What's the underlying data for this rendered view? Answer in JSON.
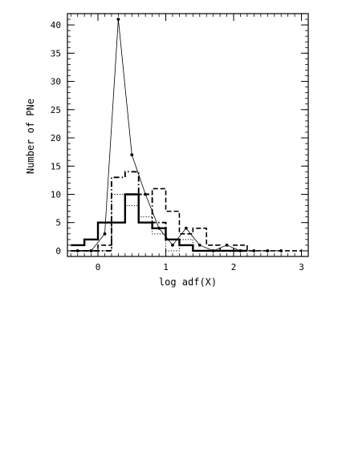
{
  "chart_data": {
    "type": "line",
    "xlabel": "log adf(X)",
    "ylabel": "Number of PNe",
    "xlim": [
      -0.45,
      3.1
    ],
    "ylim": [
      -1,
      42
    ],
    "x_ticks": [
      0,
      1,
      2,
      3
    ],
    "x_tick_labels": [
      "0",
      "1",
      "2",
      "3"
    ],
    "y_ticks": [
      0,
      5,
      10,
      15,
      20,
      25,
      30,
      35,
      40
    ],
    "y_tick_labels": [
      "0",
      "5",
      "10",
      "15",
      "20",
      "25",
      "30",
      "35",
      "40"
    ],
    "grid": false,
    "legend": "none",
    "series": [
      {
        "style": "solid line with dot markers",
        "x": [
          -0.3,
          -0.1,
          0.1,
          0.3,
          0.5,
          0.7,
          0.9,
          1.1,
          1.3,
          1.5,
          1.7,
          1.9,
          2.1,
          2.3,
          2.5,
          2.7
        ],
        "y": [
          0,
          0,
          3,
          41,
          17,
          10,
          4,
          1,
          4,
          1,
          0,
          1,
          0,
          0,
          0,
          0
        ]
      },
      {
        "style": "thick solid step histogram",
        "edges": [
          -0.4,
          -0.2,
          0.0,
          0.2,
          0.4,
          0.6,
          0.8,
          1.0,
          1.2,
          1.4,
          1.6,
          1.8,
          2.0,
          2.2
        ],
        "counts": [
          1,
          2,
          5,
          5,
          10,
          5,
          4,
          2,
          1,
          0,
          0,
          0,
          0
        ]
      },
      {
        "style": "dash-dot step histogram",
        "edges": [
          -0.4,
          -0.2,
          0.0,
          0.2,
          0.4,
          0.6,
          0.8,
          1.0,
          1.2,
          1.4,
          1.6,
          1.8,
          2.0,
          2.2
        ],
        "counts": [
          0,
          0,
          0,
          13,
          14,
          10,
          5,
          2,
          1,
          0,
          0,
          0,
          0
        ]
      },
      {
        "style": "dashed step histogram",
        "edges": [
          -0.4,
          -0.2,
          0.0,
          0.2,
          0.4,
          0.6,
          0.8,
          1.0,
          1.2,
          1.4,
          1.6,
          1.8,
          2.0,
          2.2,
          2.4,
          2.6,
          2.8,
          3.0
        ],
        "counts": [
          0,
          0,
          1,
          5,
          10,
          10,
          11,
          7,
          3,
          4,
          1,
          0,
          1,
          0,
          0,
          0,
          0
        ]
      },
      {
        "style": "dotted step histogram",
        "edges": [
          -0.4,
          -0.2,
          0.0,
          0.2,
          0.4,
          0.6,
          0.8,
          1.0,
          1.2,
          1.4,
          1.6,
          1.8,
          2.0,
          2.2
        ],
        "counts": [
          0,
          0,
          0,
          10,
          8,
          6,
          3,
          0,
          2,
          0,
          0,
          0,
          0
        ]
      }
    ]
  }
}
